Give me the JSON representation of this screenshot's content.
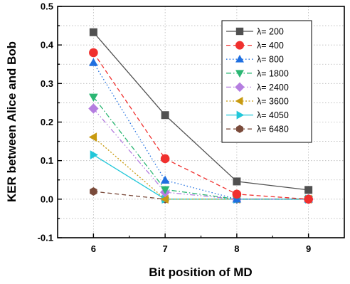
{
  "chart_data": {
    "type": "line",
    "title": "",
    "xlabel": "Bit position of MD",
    "ylabel": "KER between Alice and Bob",
    "x": [
      6,
      7,
      8,
      9
    ],
    "xlim": [
      5.5,
      9.5
    ],
    "ylim": [
      -0.1,
      0.5
    ],
    "x_ticks": [
      "6",
      "7",
      "8",
      "9"
    ],
    "y_ticks": [
      "-0.1",
      "0.0",
      "0.1",
      "0.2",
      "0.3",
      "0.4",
      "0.5"
    ],
    "grid": "dotted",
    "legend_position": "top-right",
    "series": [
      {
        "name": "λ= 200",
        "values": [
          0.433,
          0.218,
          0.046,
          0.024
        ],
        "color": "#505050",
        "marker": "square",
        "dash": "solid"
      },
      {
        "name": "λ= 400",
        "values": [
          0.38,
          0.105,
          0.013,
          0.0
        ],
        "color": "#f0302e",
        "marker": "circle",
        "dash": "dashed"
      },
      {
        "name": "λ= 800",
        "values": [
          0.354,
          0.049,
          0.0,
          0.0
        ],
        "color": "#1f6fe0",
        "marker": "triangle-up",
        "dash": "dotted"
      },
      {
        "name": "λ= 1800",
        "values": [
          0.265,
          0.025,
          0.0,
          0.0
        ],
        "color": "#2bb673",
        "marker": "triangle-down",
        "dash": "dashdot"
      },
      {
        "name": "λ= 2400",
        "values": [
          0.235,
          0.018,
          0.0,
          0.0
        ],
        "color": "#b57ee0",
        "marker": "diamond",
        "dash": "dashdotdot"
      },
      {
        "name": "λ= 3600",
        "values": [
          0.161,
          0.0,
          0.0,
          0.0
        ],
        "color": "#c89a10",
        "marker": "triangle-left",
        "dash": "shortdot"
      },
      {
        "name": "λ= 4050",
        "values": [
          0.115,
          0.0,
          0.0,
          0.0
        ],
        "color": "#21c7d9",
        "marker": "triangle-right",
        "dash": "solid"
      },
      {
        "name": "λ= 6480",
        "values": [
          0.02,
          0.0,
          0.0,
          0.0
        ],
        "color": "#7a4a3a",
        "marker": "hexagon",
        "dash": "dashed"
      }
    ]
  }
}
